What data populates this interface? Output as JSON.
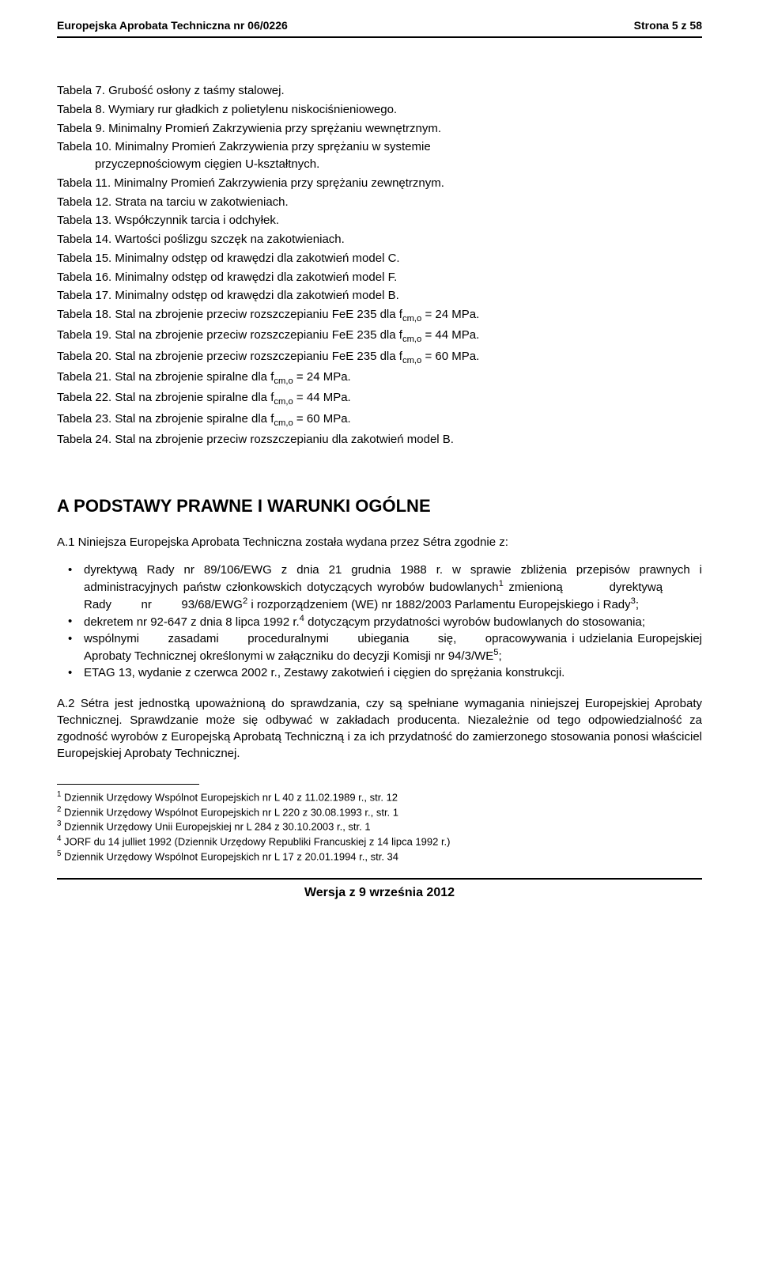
{
  "header": {
    "left": "Europejska Aprobata Techniczna nr 06/0226",
    "right": "Strona 5 z 58"
  },
  "tables": [
    {
      "label": "Tabela 7.",
      "text": "Grubość osłony z taśmy stalowej."
    },
    {
      "label": "Tabela 8.",
      "text": "Wymiary rur gładkich z polietylenu niskociśnieniowego."
    },
    {
      "label": "Tabela 9.",
      "text": "Minimalny Promień Zakrzywienia przy sprężaniu wewnętrznym."
    },
    {
      "label": "Tabela 10.",
      "text": "Minimalny Promień Zakrzywienia przy sprężaniu w systemie",
      "indent": "przyczepnościowym cięgien U-kształtnych."
    },
    {
      "label": "Tabela 11.",
      "text": "Minimalny Promień Zakrzywienia przy sprężaniu zewnętrznym."
    },
    {
      "label": "Tabela 12.",
      "text": "Strata na tarciu w zakotwieniach."
    },
    {
      "label": "Tabela 13.",
      "text": "Współczynnik tarcia i odchyłek."
    },
    {
      "label": "Tabela 14.",
      "text": "Wartości poślizgu szczęk na zakotwieniach."
    },
    {
      "label": "Tabela 15.",
      "text": "Minimalny odstęp od krawędzi dla zakotwień model C."
    },
    {
      "label": "Tabela 16.",
      "text": "Minimalny odstęp od krawędzi dla zakotwień model F."
    },
    {
      "label": "Tabela 17.",
      "text": "Minimalny odstęp od krawędzi dla zakotwień model B."
    },
    {
      "label": "Tabela 18.",
      "text": "Stal na zbrojenie przeciw rozszczepianiu FeE 235 dla f",
      "sub": "cm,o",
      "tail": " = 24 MPa."
    },
    {
      "label": "Tabela 19.",
      "text": "Stal na zbrojenie przeciw rozszczepianiu FeE 235 dla f",
      "sub": "cm,o",
      "tail": " = 44 MPa."
    },
    {
      "label": "Tabela 20.",
      "text": "Stal na zbrojenie przeciw rozszczepianiu FeE 235 dla f",
      "sub": "cm,o",
      "tail": " = 60 MPa."
    },
    {
      "label": "Tabela 21.",
      "text": "Stal na zbrojenie spiralne dla f",
      "sub": "cm,o",
      "tail": " = 24 MPa."
    },
    {
      "label": "Tabela 22.",
      "text": "Stal na zbrojenie spiralne dla f",
      "sub": "cm,o",
      "tail": " = 44 MPa."
    },
    {
      "label": "Tabela 23.",
      "text": "Stal na zbrojenie spiralne dla f",
      "sub": "cm,o",
      "tail": "  = 60 MPa."
    },
    {
      "label": "Tabela 24.",
      "text": "Stal na zbrojenie przeciw rozszczepianiu dla zakotwień model B."
    }
  ],
  "section_a": {
    "heading": "A PODSTAWY PRAWNE I WARUNKI OGÓLNE",
    "intro": "A.1 Niniejsza Europejska Aprobata Techniczna została wydana przez Sétra zgodnie z:",
    "bullets": {
      "b1a": "dyrektywą Rady nr 89/106/EWG z dnia 21 grudnia 1988 r. w sprawie zbliżenia przepisów prawnych i administracyjnych państw członkowskich dotyczących wyrobów budowlanych",
      "b1b": "zmienioną",
      "b1c": "dyrektywą",
      "b1d": "Rady",
      "b1e": "nr",
      "b1f": "93/68/EWG",
      "b1g": "i rozporządzeniem (WE) nr 1882/2003 Parlamentu Europejskiego i Rady",
      "b2a": "dekretem nr 92-647 z dnia 8 lipca 1992 r.",
      "b2b": " dotyczącym przydatności wyrobów budowlanych do stosowania;",
      "b3a": "wspólnymi",
      "b3b": "zasadami",
      "b3c": "proceduralnymi",
      "b3d": "ubiegania",
      "b3e": "się,",
      "b3f": "opracowywania",
      "b3g": "i udzielania Europejskiej Aprobaty Technicznej określonymi w załączniku do decyzji Komisji nr 94/3/WE",
      "b4": "ETAG 13, wydanie z czerwca 2002 r., Zestawy zakotwień i cięgien do sprężania konstrukcji."
    },
    "a2": "A.2 Sétra jest jednostką upoważnioną do sprawdzania, czy są spełniane wymagania niniejszej Europejskiej Aprobaty Technicznej. Sprawdzanie może się odbywać w zakładach producenta. Niezależnie od tego odpowiedzialność za zgodność wyrobów z Europejską Aprobatą Techniczną i za ich przydatność do zamierzonego stosowania ponosi właściciel Europejskiej Aprobaty Technicznej."
  },
  "footnotes": {
    "f1": " Dziennik Urzędowy Wspólnot Europejskich nr L 40 z 11.02.1989 r., str. 12",
    "f2": " Dziennik Urzędowy Wspólnot Europejskich nr L 220 z 30.08.1993 r., str. 1",
    "f3": " Dziennik Urzędowy Unii Europejskiej nr L 284 z 30.10.2003 r., str. 1",
    "f4": " JORF du 14 julliet 1992 (Dziennik Urzędowy Republiki Francuskiej z 14 lipca 1992 r.)",
    "f5": " Dziennik Urzędowy Wspólnot Europejskich nr L 17 z 20.01.1994 r., str. 34"
  },
  "footer": "Wersja z 9 września 2012"
}
